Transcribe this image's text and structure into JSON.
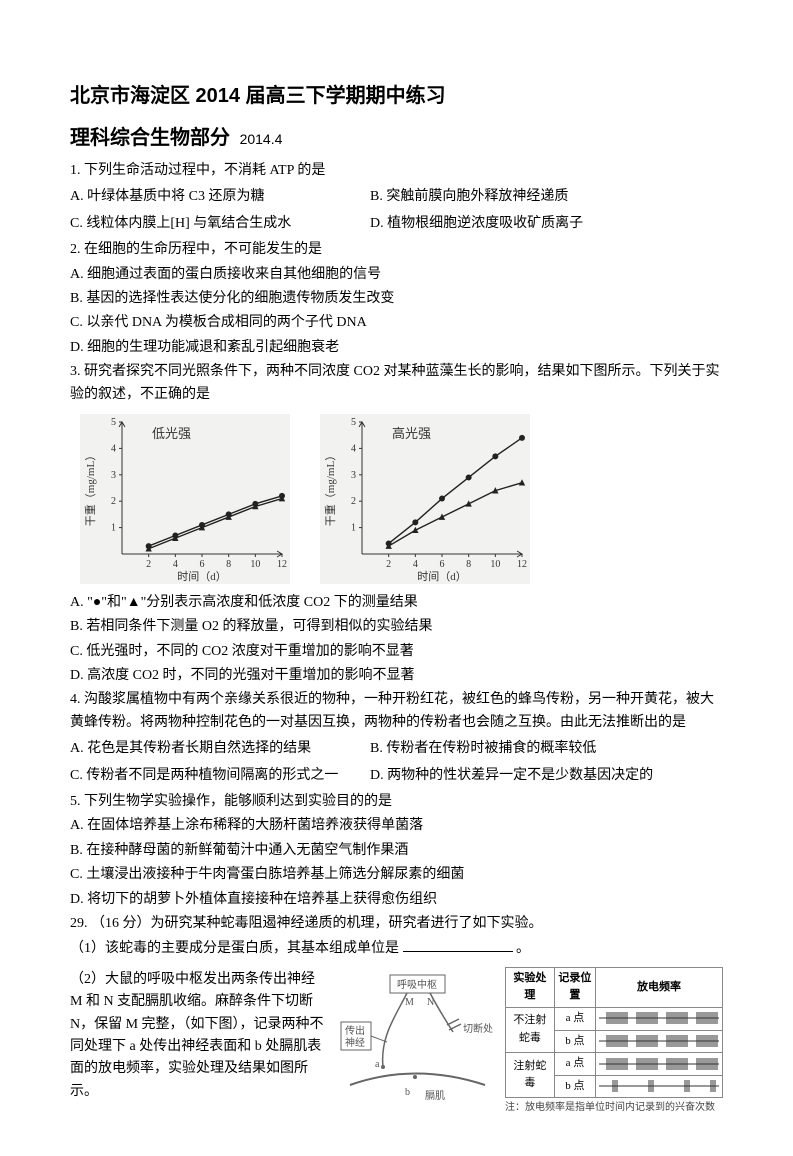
{
  "header": {
    "title_line1": "北京市海淀区 2014 届高三下学期期中练习",
    "title_line2": "理科综合生物部分",
    "date": "2014.4"
  },
  "q1": {
    "stem": "1. 下列生命活动过程中，不消耗 ATP 的是",
    "A": "A. 叶绿体基质中将 C3 还原为糖",
    "B": "B. 突触前膜向胞外释放神经递质",
    "C": "C. 线粒体内膜上[H] 与氧结合生成水",
    "D": "D. 植物根细胞逆浓度吸收矿质离子"
  },
  "q2": {
    "stem": "2. 在细胞的生命历程中，不可能发生的是",
    "A": "A. 细胞通过表面的蛋白质接收来自其他细胞的信号",
    "B": "B. 基因的选择性表达使分化的细胞遗传物质发生改变",
    "C": "C. 以亲代 DNA 为模板合成相同的两个子代 DNA",
    "D": "D. 细胞的生理功能减退和紊乱引起细胞衰老"
  },
  "q3": {
    "stem": "3. 研究者探究不同光照条件下，两种不同浓度 CO2 对某种蓝藻生长的影响，结果如下图所示。下列关于实验的叙述，不正确的是",
    "A": "A. \"●\"和\"▲\"分别表示高浓度和低浓度 CO2 下的测量结果",
    "B": "B. 若相同条件下测量 O2 的释放量，可得到相似的实验结果",
    "C": "C. 低光强时，不同的 CO2 浓度对干重增加的影响不显著",
    "D": "D. 高浓度 CO2 时，不同的光强对干重增加的影响不显著",
    "chart_left": {
      "type": "line",
      "title": "低光强",
      "xlabel": "时间（d）",
      "ylabel": "干重（mg/mL）",
      "xlim": [
        0,
        12
      ],
      "ylim": [
        0,
        5
      ],
      "xticks": [
        2,
        4,
        6,
        8,
        10,
        12
      ],
      "yticks": [
        1,
        2,
        3,
        4,
        5
      ],
      "bg": "#f2f2f0",
      "axis_color": "#333333",
      "series": [
        {
          "marker": "circle",
          "color": "#222222",
          "points": [
            [
              2,
              0.3
            ],
            [
              4,
              0.7
            ],
            [
              6,
              1.1
            ],
            [
              8,
              1.5
            ],
            [
              10,
              1.9
            ],
            [
              12,
              2.2
            ]
          ]
        },
        {
          "marker": "triangle",
          "color": "#222222",
          "points": [
            [
              2,
              0.2
            ],
            [
              4,
              0.6
            ],
            [
              6,
              1.0
            ],
            [
              8,
              1.4
            ],
            [
              10,
              1.8
            ],
            [
              12,
              2.1
            ]
          ]
        }
      ]
    },
    "chart_right": {
      "type": "line",
      "title": "高光强",
      "xlabel": "时间（d）",
      "ylabel": "干重（mg/mL）",
      "xlim": [
        0,
        12
      ],
      "ylim": [
        0,
        5
      ],
      "xticks": [
        2,
        4,
        6,
        8,
        10,
        12
      ],
      "yticks": [
        1,
        2,
        3,
        4,
        5
      ],
      "bg": "#f2f2f0",
      "axis_color": "#333333",
      "series": [
        {
          "marker": "circle",
          "color": "#222222",
          "points": [
            [
              2,
              0.4
            ],
            [
              4,
              1.2
            ],
            [
              6,
              2.1
            ],
            [
              8,
              2.9
            ],
            [
              10,
              3.7
            ],
            [
              12,
              4.4
            ]
          ]
        },
        {
          "marker": "triangle",
          "color": "#222222",
          "points": [
            [
              2,
              0.3
            ],
            [
              4,
              0.9
            ],
            [
              6,
              1.4
            ],
            [
              8,
              1.9
            ],
            [
              10,
              2.4
            ],
            [
              12,
              2.7
            ]
          ]
        }
      ]
    }
  },
  "q4": {
    "stem": "4. 沟酸浆属植物中有两个亲缘关系很近的物种，一种开粉红花，被红色的蜂鸟传粉，另一种开黄花，被大黄蜂传粉。将两物种控制花色的一对基因互换，两物种的传粉者也会随之互换。由此无法推断出的是",
    "A": "A. 花色是其传粉者长期自然选择的结果",
    "B": "B. 传粉者在传粉时被捕食的概率较低",
    "C": "C. 传粉者不同是两种植物间隔离的形式之一",
    "D": "D. 两物种的性状差异一定不是少数基因决定的"
  },
  "q5": {
    "stem": "5. 下列生物学实验操作，能够顺利达到实验目的的是",
    "A": "A. 在固体培养基上涂布稀释的大肠杆菌培养液获得单菌落",
    "B": "B. 在接种酵母菌的新鲜葡萄汁中通入无菌空气制作果酒",
    "C": "C. 土壤浸出液接种于牛肉膏蛋白胨培养基上筛选分解尿素的细菌",
    "D": "D. 将切下的胡萝卜外植体直接接种在培养基上获得愈伤组织"
  },
  "q29": {
    "stem": "29. （16 分）为研究某种蛇毒阻遏神经递质的机理，研究者进行了如下实验。",
    "p1_a": "（1）该蛇毒的主要成分是蛋白质，其基本组成单位是",
    "p1_b": "。",
    "p2": "（2）大鼠的呼吸中枢发出两条传出神经 M 和 N 支配膈肌收缩。麻醉条件下切断 N，保留 M 完整，（如下图），记录两种不同处理下 a 处传出神经表面和 b 处膈肌表面的放电频率，实验处理及结果如图所示。",
    "diagram": {
      "labels": {
        "center": "呼吸中枢",
        "M": "M",
        "N": "N",
        "out": "传出神经",
        "cut": "切断处",
        "a": "a",
        "b": "b",
        "muscle": "膈肌"
      },
      "line_color": "#666666",
      "text_color": "#555555"
    },
    "table": {
      "headers": [
        "实验处理",
        "记录位置",
        "放电频率"
      ],
      "rows": [
        {
          "treat": "不注射蛇毒",
          "pos": "a 点",
          "signal": "dense"
        },
        {
          "treat": "",
          "pos": "b 点",
          "signal": "dense"
        },
        {
          "treat": "注射蛇毒",
          "pos": "a 点",
          "signal": "dense"
        },
        {
          "treat": "",
          "pos": "b 点",
          "signal": "sparse"
        }
      ],
      "note": "注：放电频率是指单位时间内记录到的兴奋次数",
      "border_color": "#888888",
      "wave_color": "#333333"
    }
  }
}
